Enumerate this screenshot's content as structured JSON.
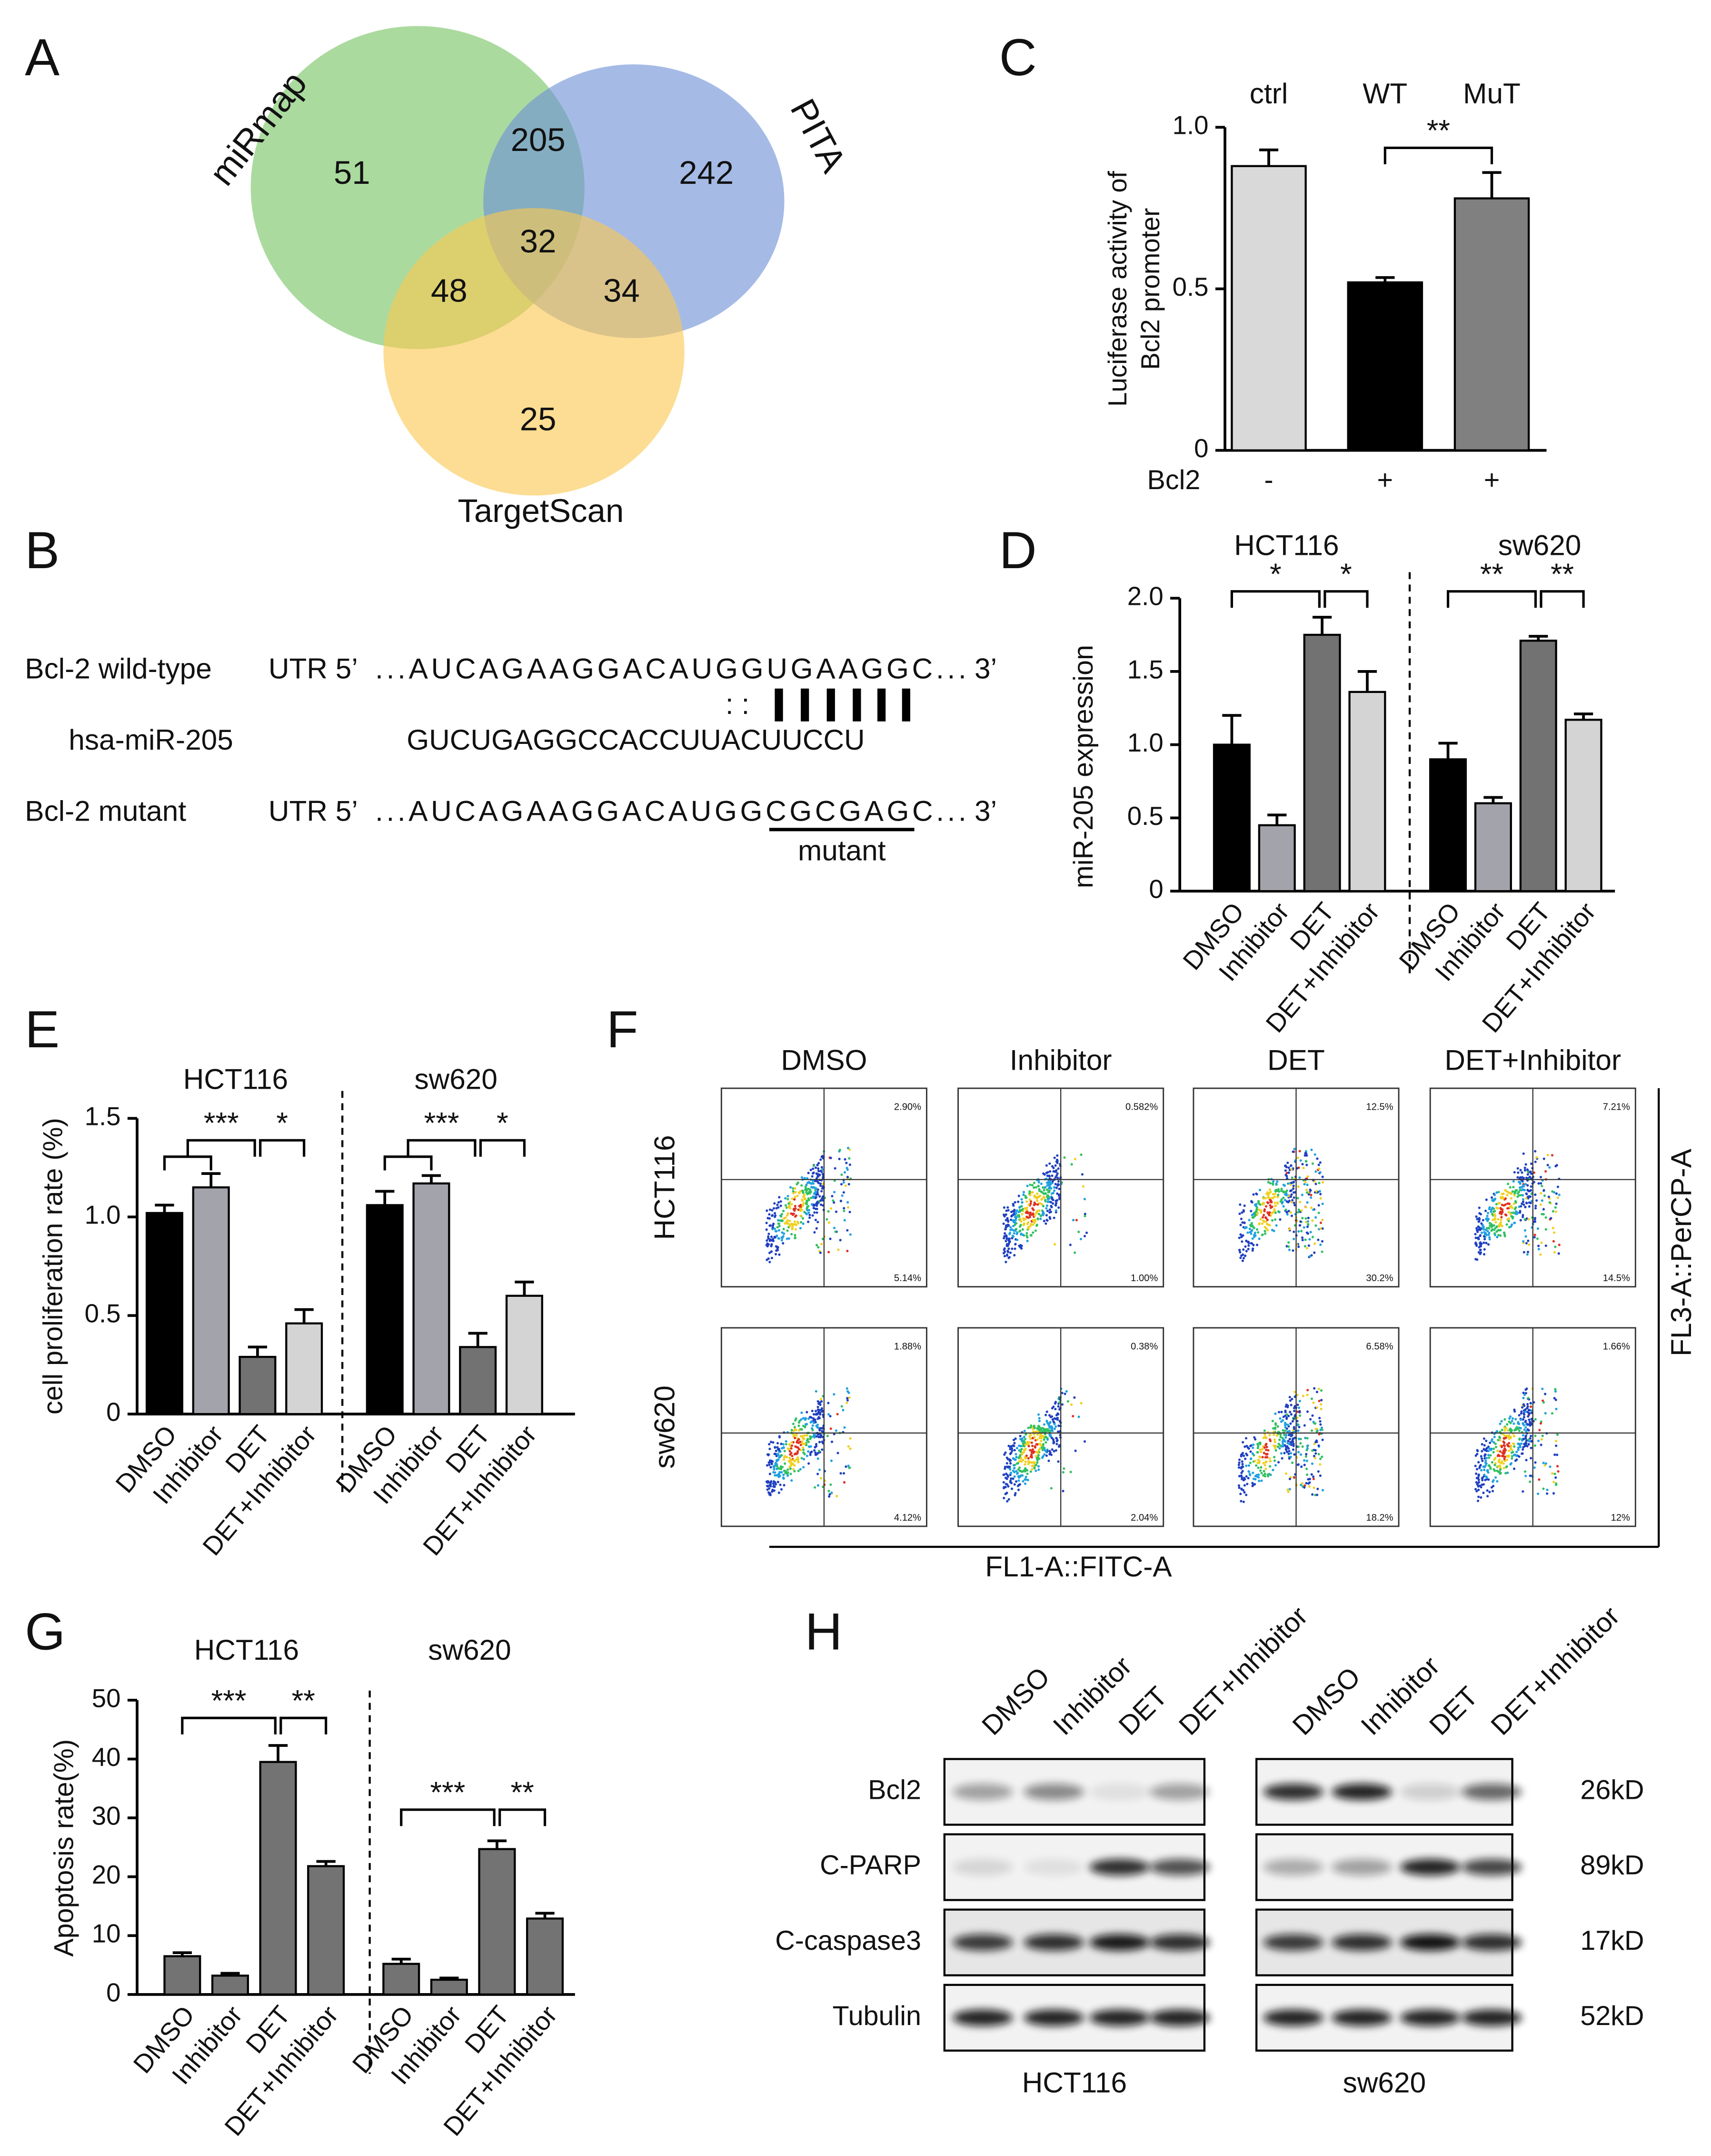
{
  "panel_labels": [
    "A",
    "B",
    "C",
    "D",
    "E",
    "F",
    "G",
    "H"
  ],
  "venn": {
    "sets": [
      "miRmap",
      "PITA",
      "TargetScan"
    ],
    "regions": [
      51,
      205,
      242,
      32,
      48,
      34,
      25
    ]
  },
  "sequence": {
    "rows": [
      {
        "name": "Bcl-2 wild-type",
        "prefix": "UTR 5’",
        "seq": "...AUCAGAAGGACAUGGUGAAGGC...",
        "suffix": "3’"
      },
      {
        "name": "hsa-miR-205",
        "seq": "GUCUGAGGCCACCUUACUUCCU"
      },
      {
        "name": "Bcl-2 mutant",
        "prefix": "UTR 5’",
        "seq": "...AUCAGAAGGACAUGGCGCGAGC...",
        "suffix": "3’"
      }
    ],
    "pairing": ": :",
    "mutant_label": "mutant"
  },
  "chart_data": [
    {
      "type": "bar",
      "categories": [
        "ctrl",
        "WT",
        "MuT"
      ],
      "values": [
        0.88,
        0.52,
        0.78
      ],
      "errors": [
        0.05,
        0.015,
        0.08
      ],
      "colors": [
        "#d9d9d9",
        "#000000",
        "#808080"
      ],
      "ylabel": [
        "Luciferase activity of",
        "Bcl2 promoter"
      ],
      "ylim": [
        0,
        1
      ],
      "yticks": [
        0,
        0.5,
        {
          "value": 1,
          "label": "1.0"
        }
      ],
      "row": {
        "label": "Bcl2",
        "values": [
          "-",
          "+",
          "+"
        ]
      },
      "significance": [
        "**"
      ]
    },
    {
      "type": "grouped_bar",
      "categories": [
        "DMSO",
        "Inhibitor",
        "DET",
        "DET+Inhibitor"
      ],
      "colors": [
        "#000000",
        "#a3a3ab",
        "#727272",
        "#d4d4d4"
      ],
      "ylabel": "miR-205 expression",
      "ylim": [
        0,
        2
      ],
      "yticks": [
        0,
        0.5,
        {
          "value": 1,
          "label": "1.0"
        },
        1.5,
        {
          "value": 2,
          "label": "2.0"
        }
      ],
      "series": [
        {
          "name": "HCT116",
          "values": [
            1.0,
            0.45,
            1.75,
            1.36
          ],
          "errors": [
            0.2,
            0.07,
            0.12,
            0.14
          ],
          "significance": [
            "*",
            "*"
          ]
        },
        {
          "name": "sw620",
          "values": [
            0.9,
            0.6,
            1.71,
            1.17
          ],
          "errors": [
            0.11,
            0.04,
            0.03,
            0.04
          ],
          "significance": [
            "**",
            "**"
          ]
        }
      ]
    },
    {
      "type": "grouped_bar",
      "categories": [
        "DMSO",
        "Inhibitor",
        "DET",
        "DET+Inhibitor"
      ],
      "colors": [
        "#000000",
        "#a3a3ab",
        "#727272",
        "#d4d4d4"
      ],
      "ylabel": "cell proliferation rate (%)",
      "ylim": [
        0,
        1.5
      ],
      "yticks": [
        0,
        0.5,
        {
          "value": 1,
          "label": "1.0"
        },
        1.5
      ],
      "series": [
        {
          "name": "HCT116",
          "values": [
            1.02,
            1.15,
            0.29,
            0.46
          ],
          "errors": [
            0.04,
            0.07,
            0.05,
            0.07
          ],
          "significance": [
            "***",
            "*"
          ]
        },
        {
          "name": "sw620",
          "values": [
            1.06,
            1.17,
            0.34,
            0.6
          ],
          "errors": [
            0.07,
            0.04,
            0.07,
            0.07
          ],
          "significance": [
            "***",
            "*"
          ]
        }
      ]
    },
    {
      "type": "grouped_bar",
      "categories": [
        "DMSO",
        "Inhibitor",
        "DET",
        "DET+Inhibitor"
      ],
      "colors": [
        "#737373",
        "#737373",
        "#737373",
        "#737373"
      ],
      "ylabel": "Apoptosis rate(%)",
      "ylim": [
        0,
        50
      ],
      "yticks": [
        0,
        10,
        20,
        30,
        40,
        50
      ],
      "series": [
        {
          "name": "HCT116",
          "values": [
            6.5,
            3.2,
            39.5,
            21.8
          ],
          "errors": [
            0.6,
            0.4,
            2.8,
            0.8
          ],
          "significance": [
            "***",
            "**"
          ]
        },
        {
          "name": "sw620",
          "values": [
            5.2,
            2.5,
            24.7,
            12.9
          ],
          "errors": [
            0.8,
            0.3,
            1.4,
            0.9
          ],
          "significance": [
            "***",
            "**"
          ]
        }
      ]
    }
  ],
  "flow": {
    "columns": [
      "DMSO",
      "Inhibitor",
      "DET",
      "DET+Inhibitor"
    ],
    "rows": [
      "HCT116",
      "sw620"
    ],
    "xlabel": "FL1-A::FITC-A",
    "ylabel": "FL3-A::PerCP-A",
    "q2": [
      [
        "2.90%",
        "0.582%",
        "12.5%",
        "7.21%"
      ],
      [
        "1.88%",
        "0.38%",
        "6.58%",
        "1.66%"
      ]
    ],
    "q3": [
      [
        "5.14%",
        "1.00%",
        "30.2%",
        "14.5%"
      ],
      [
        "4.12%",
        "2.04%",
        "18.2%",
        "12%"
      ]
    ]
  },
  "blot": {
    "lanes": [
      "DMSO",
      "Inhibitor",
      "DET",
      "DET+Inhibitor"
    ],
    "proteins": [
      "Bcl2",
      "C-PARP",
      "C-caspase3",
      "Tubulin"
    ],
    "sizes": [
      "26kD",
      "89kD",
      "17kD",
      "52kD"
    ],
    "groups": [
      "HCT116",
      "sw620"
    ]
  }
}
